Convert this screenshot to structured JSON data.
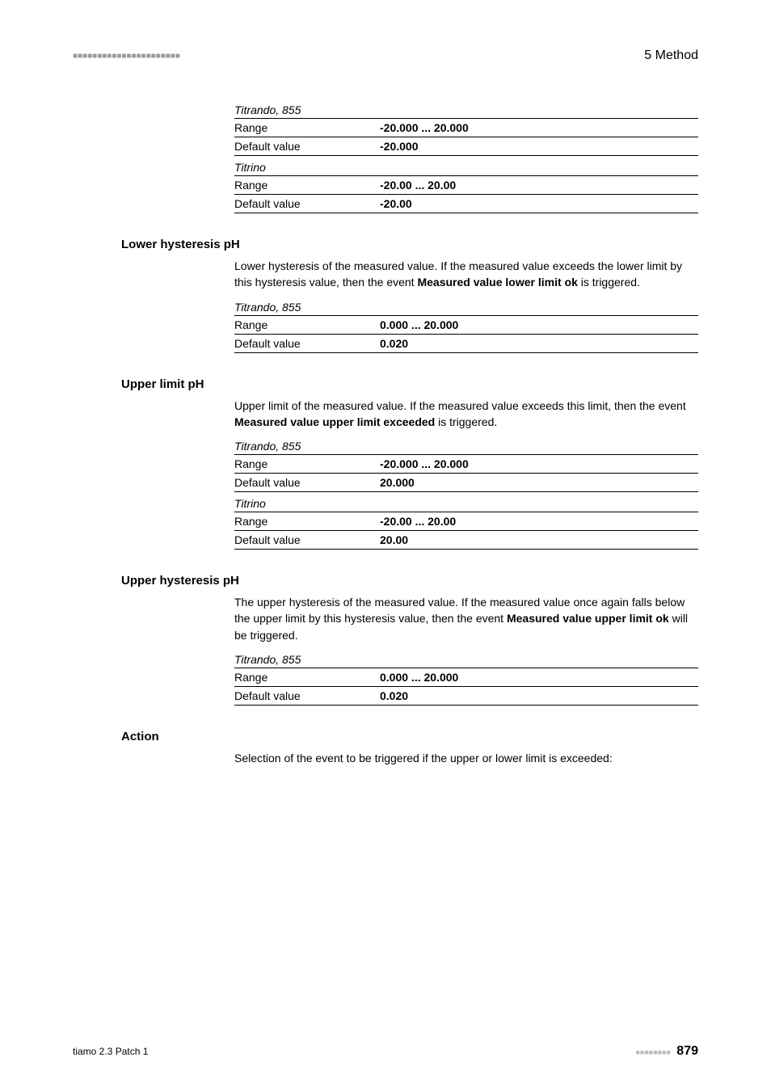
{
  "header": {
    "bars": "■■■■■■■■■■■■■■■■■■■■■■",
    "right": "5 Method"
  },
  "blocks": [
    {
      "type": "spec",
      "devices": [
        {
          "name": "Titrando, 855",
          "rows": [
            {
              "label": "Range",
              "value": "-20.000 ... 20.000"
            },
            {
              "label": "Default value",
              "value": "-20.000"
            }
          ]
        },
        {
          "name": "Titrino",
          "rows": [
            {
              "label": "Range",
              "value": "-20.00 ... 20.00"
            },
            {
              "label": "Default value",
              "value": "-20.00"
            }
          ]
        }
      ]
    },
    {
      "type": "section",
      "title": "Lower hysteresis pH",
      "paragraphs": [
        [
          {
            "t": "Lower hysteresis of the measured value. If the measured value exceeds the lower limit by this hysteresis value, then the event "
          },
          {
            "t": "Measured value lower limit ok",
            "b": true
          },
          {
            "t": " is triggered."
          }
        ]
      ],
      "devices": [
        {
          "name": "Titrando, 855",
          "rows": [
            {
              "label": "Range",
              "value": "0.000 ... 20.000"
            },
            {
              "label": "Default value",
              "value": "0.020"
            }
          ]
        }
      ]
    },
    {
      "type": "section",
      "title": "Upper limit pH",
      "paragraphs": [
        [
          {
            "t": "Upper limit of the measured value. If the measured value exceeds this limit, then the event "
          },
          {
            "t": "Measured value upper limit exceeded",
            "b": true
          },
          {
            "t": " is triggered."
          }
        ]
      ],
      "devices": [
        {
          "name": "Titrando, 855",
          "rows": [
            {
              "label": "Range",
              "value": "-20.000 ... 20.000"
            },
            {
              "label": "Default value",
              "value": "20.000"
            }
          ]
        },
        {
          "name": "Titrino",
          "rows": [
            {
              "label": "Range",
              "value": "-20.00 ... 20.00"
            },
            {
              "label": "Default value",
              "value": "20.00"
            }
          ]
        }
      ]
    },
    {
      "type": "section",
      "title": "Upper hysteresis pH",
      "paragraphs": [
        [
          {
            "t": "The upper hysteresis of the measured value. If the measured value once again falls below the upper limit by this hysteresis value, then the event "
          },
          {
            "t": "Measured value upper limit ok",
            "b": true
          },
          {
            "t": " will be triggered."
          }
        ]
      ],
      "devices": [
        {
          "name": "Titrando, 855",
          "rows": [
            {
              "label": "Range",
              "value": "0.000 ... 20.000"
            },
            {
              "label": "Default value",
              "value": "0.020"
            }
          ]
        }
      ]
    },
    {
      "type": "section",
      "title": "Action",
      "paragraphs": [
        [
          {
            "t": "Selection of the event to be triggered if the upper or lower limit is exceeded:"
          }
        ]
      ],
      "devices": []
    }
  ],
  "footer": {
    "left": "tiamo 2.3 Patch 1",
    "bars": "■■■■■■■■",
    "page": "879"
  }
}
